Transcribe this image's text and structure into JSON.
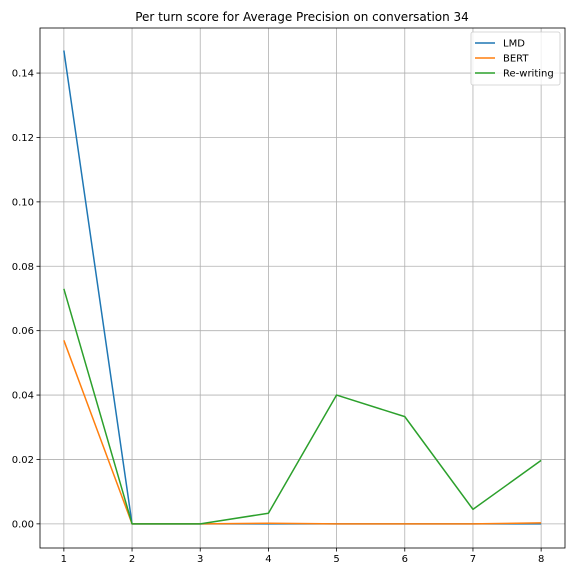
{
  "chart_data": {
    "type": "line",
    "title": "Per turn score for Average Precision on conversation 34",
    "xlabel": "",
    "ylabel": "",
    "x": [
      1,
      2,
      3,
      4,
      5,
      6,
      7,
      8
    ],
    "xlim": [
      0.65,
      8.35
    ],
    "ylim": [
      -0.0075,
      0.154
    ],
    "xticks": [
      1,
      2,
      3,
      4,
      5,
      6,
      7,
      8
    ],
    "yticks": [
      0.0,
      0.02,
      0.04,
      0.06,
      0.08,
      0.1,
      0.12,
      0.14
    ],
    "ytick_labels": [
      "0.00",
      "0.02",
      "0.04",
      "0.06",
      "0.08",
      "0.10",
      "0.12",
      "0.14"
    ],
    "grid": true,
    "legend_position": "top-right",
    "series": [
      {
        "name": "LMD",
        "color": "#1f77b4",
        "values": [
          0.147,
          0.0,
          0.0,
          0.0,
          0.0,
          0.0,
          0.0,
          0.0
        ]
      },
      {
        "name": "BERT",
        "color": "#ff7f0e",
        "values": [
          0.057,
          0.0,
          0.0,
          0.0002,
          0.0,
          0.0,
          0.0,
          0.0003
        ]
      },
      {
        "name": "Re-writing",
        "color": "#2ca02c",
        "values": [
          0.073,
          0.0,
          0.0,
          0.0033,
          0.04,
          0.0333,
          0.0045,
          0.0197
        ]
      }
    ]
  }
}
